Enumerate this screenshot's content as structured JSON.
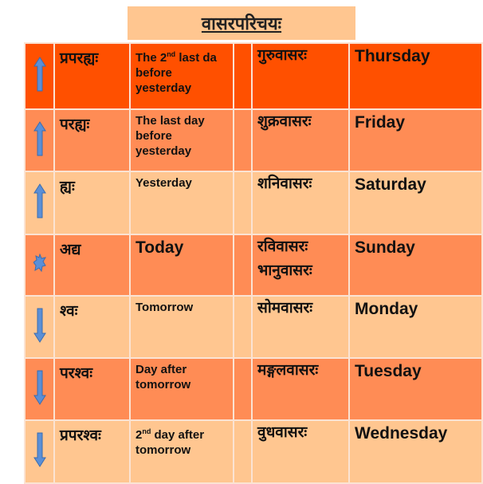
{
  "title": "वासरपरिचयः",
  "colors": {
    "deep": "#ff5000",
    "mid": "#ff8c55",
    "light": "#ffc690"
  },
  "rows": [
    {
      "icon": "arrow-up",
      "sanskrit": "प्रपरह्यः",
      "meaning_pre": "The 2",
      "meaning_sup": "nd",
      "meaning_post": " last da before yesterday",
      "day_sanskrit": "गुरुवासरः",
      "day": "Thursday"
    },
    {
      "icon": "arrow-up",
      "sanskrit": "परह्यः",
      "meaning": "The last day before yesterday",
      "day_sanskrit": "शुक्रवासरः",
      "day": "Friday"
    },
    {
      "icon": "arrow-up",
      "sanskrit": "ह्यः",
      "meaning": "Yesterday",
      "day_sanskrit": "शनिवासरः",
      "day": "Saturday"
    },
    {
      "icon": "sun",
      "sanskrit": "अद्य",
      "meaning": "Today",
      "day_sanskrit": "रविवासरः",
      "day_sanskrit_alt": "भानुवासरः",
      "day": "Sunday"
    },
    {
      "icon": "arrow-down",
      "sanskrit": "श्वः",
      "meaning": "Tomorrow",
      "day_sanskrit": "सोमवासरः",
      "day": "Monday"
    },
    {
      "icon": "arrow-down",
      "sanskrit": "परश्वः",
      "meaning": "Day after tomorrow",
      "day_sanskrit": "मङ्गलवासरः",
      "day": "Tuesday"
    },
    {
      "icon": "arrow-down",
      "sanskrit": "प्रपरश्वः",
      "meaning_pre": "2",
      "meaning_sup": "nd",
      "meaning_post": " day after tomorrow",
      "day_sanskrit": "वुधवासरः",
      "day": "Wednesday"
    }
  ]
}
